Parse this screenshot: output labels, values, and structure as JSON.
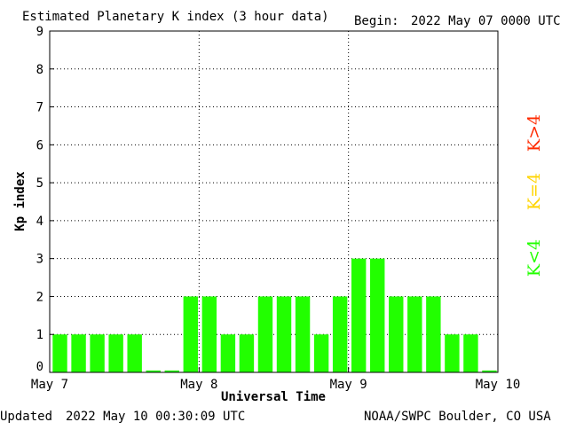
{
  "header": {
    "title": "Estimated Planetary K index (3 hour data)",
    "begin_label": "Begin:",
    "begin_value": "2022 May 07 0000 UTC"
  },
  "footer": {
    "updated_label": "Updated",
    "updated_value": "2022 May 10 00:30:09 UTC",
    "credit": "NOAA/SWPC Boulder, CO USA"
  },
  "legend": {
    "high": "K>4",
    "mid": "K=4",
    "low": "K<4"
  },
  "colors": {
    "bar_low": "#22ff00",
    "bar_mid": "#ffd400",
    "bar_high": "#ff2a00",
    "axis": "#000000",
    "grid": "#000000"
  },
  "chart_data": {
    "type": "bar",
    "title": "Estimated Planetary K index (3 hour data)",
    "xlabel": "Universal Time",
    "ylabel": "Kp index",
    "ylim": [
      0,
      9
    ],
    "yticks": [
      0,
      1,
      2,
      3,
      4,
      5,
      6,
      7,
      8,
      9
    ],
    "xticks": [
      "May 7",
      "May 8",
      "May 9",
      "May 10"
    ],
    "grid": true,
    "values": [
      1,
      1,
      1,
      1,
      1,
      0.05,
      0.05,
      2,
      2,
      1,
      1,
      2,
      2,
      2,
      1,
      2,
      3,
      3,
      2,
      2,
      2,
      1,
      1,
      0.05
    ]
  }
}
